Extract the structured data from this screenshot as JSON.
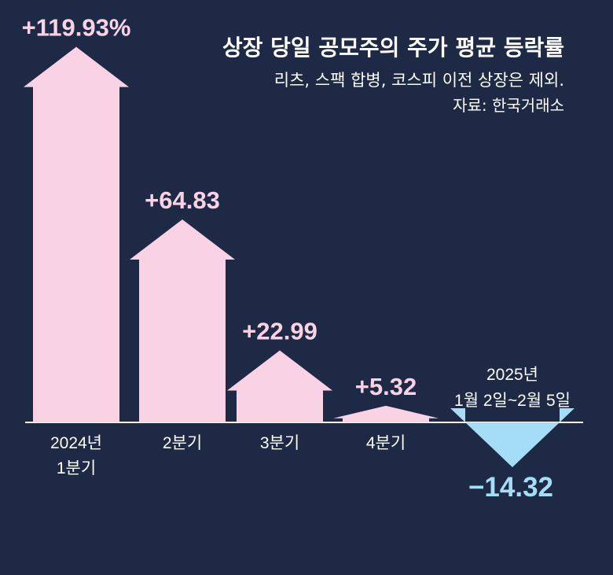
{
  "chart_data": {
    "type": "bar",
    "title": "상장 당일 공모주의 주가 평균 등락률",
    "subtitle": "리츠, 스팩 합병, 코스피 이전 상장은 제외.",
    "source": "자료: 한국거래소",
    "categories": [
      "2024년\n1분기",
      "2분기",
      "3분기",
      "4분기",
      "2025년\n1월 2일~2월 5일"
    ],
    "values": [
      119.93,
      64.83,
      22.99,
      5.32,
      -14.32
    ],
    "value_labels": [
      "+119.93%",
      "+64.83",
      "+22.99",
      "+5.32",
      "−14.32"
    ],
    "colors": {
      "positive": "#f9d3e3",
      "negative": "#a5dcf6",
      "positive_label": "#f9d3e3",
      "negative_label": "#a5dcf6",
      "baseline": "#ffffff"
    }
  }
}
